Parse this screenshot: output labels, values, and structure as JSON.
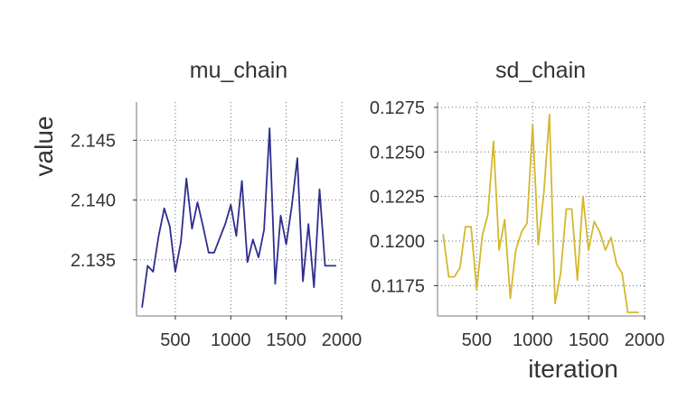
{
  "chart_data": [
    {
      "type": "line",
      "title": "mu_chain",
      "xlabel": "",
      "ylabel": "value",
      "color": "#2e2e8f",
      "xlim": [
        150,
        2000
      ],
      "ylim": [
        2.1303,
        2.1482
      ],
      "xticks": [
        500,
        1000,
        1500,
        2000
      ],
      "xtick_labels": [
        "500",
        "1000",
        "1500",
        "2000"
      ],
      "yticks": [
        2.135,
        2.14,
        2.145
      ],
      "ytick_labels": [
        "2.135",
        "2.140",
        "2.145"
      ],
      "grid": true,
      "x": [
        200,
        250,
        300,
        350,
        400,
        450,
        500,
        550,
        600,
        650,
        700,
        750,
        800,
        850,
        900,
        950,
        1000,
        1050,
        1100,
        1150,
        1200,
        1250,
        1300,
        1350,
        1400,
        1450,
        1500,
        1550,
        1600,
        1650,
        1700,
        1750,
        1800,
        1850,
        1900,
        1950
      ],
      "y": [
        2.131,
        2.1345,
        2.134,
        2.137,
        2.1393,
        2.1378,
        2.134,
        2.1365,
        2.1418,
        2.1376,
        2.1398,
        2.1378,
        2.1356,
        2.1356,
        2.1368,
        2.138,
        2.1396,
        2.137,
        2.1416,
        2.1348,
        2.1367,
        2.1352,
        2.1375,
        2.146,
        2.133,
        2.1387,
        2.1363,
        2.1395,
        2.1435,
        2.1332,
        2.138,
        2.1327,
        2.1409,
        2.1345,
        2.1345,
        2.1345
      ]
    },
    {
      "type": "line",
      "title": "sd_chain",
      "xlabel": "iteration",
      "ylabel": "",
      "color": "#d4b82e",
      "xlim": [
        150,
        2000
      ],
      "ylim": [
        0.1158,
        0.1278
      ],
      "xticks": [
        500,
        1000,
        1500,
        2000
      ],
      "xtick_labels": [
        "500",
        "1000",
        "1500",
        "2000"
      ],
      "yticks": [
        0.1175,
        0.12,
        0.1225,
        0.125,
        0.1275
      ],
      "ytick_labels": [
        "0.1175",
        "0.1200",
        "0.1225",
        "0.1250",
        "0.1275"
      ],
      "grid": true,
      "x": [
        200,
        250,
        300,
        350,
        400,
        450,
        500,
        550,
        600,
        650,
        700,
        750,
        800,
        850,
        900,
        950,
        1000,
        1050,
        1100,
        1150,
        1200,
        1250,
        1300,
        1350,
        1400,
        1450,
        1500,
        1550,
        1600,
        1650,
        1700,
        1750,
        1800,
        1850,
        1900,
        1950
      ],
      "y": [
        0.1204,
        0.118,
        0.118,
        0.1185,
        0.1208,
        0.1208,
        0.1173,
        0.1203,
        0.1215,
        0.1256,
        0.1195,
        0.1212,
        0.1168,
        0.1195,
        0.1205,
        0.121,
        0.1265,
        0.1198,
        0.1227,
        0.1271,
        0.1165,
        0.1182,
        0.1218,
        0.1218,
        0.1178,
        0.1225,
        0.1195,
        0.1211,
        0.1205,
        0.1195,
        0.1202,
        0.1187,
        0.1182,
        0.116,
        0.116,
        0.116
      ]
    }
  ]
}
